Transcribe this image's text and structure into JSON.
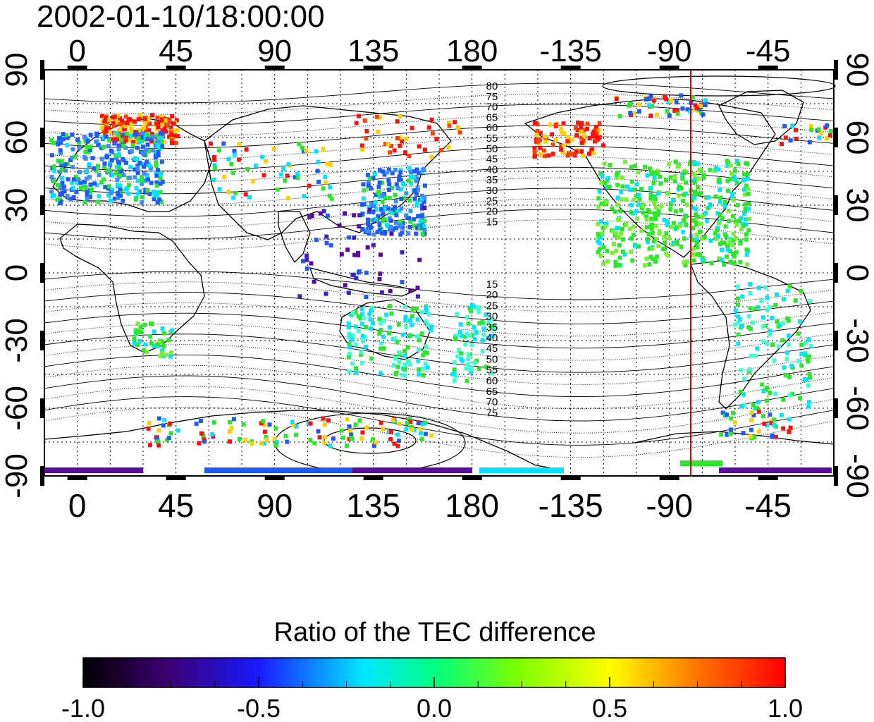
{
  "title": "2002-01-10/18:00:00",
  "axes": {
    "lon_ticks": [
      "0",
      "45",
      "90",
      "135",
      "180",
      "-135",
      "-90",
      "-45"
    ],
    "lat_ticks": [
      "90",
      "60",
      "30",
      "0",
      "-30",
      "-60",
      "-90"
    ]
  },
  "contour_labels_north": [
    "80",
    "75",
    "70",
    "65",
    "60",
    "55",
    "50",
    "45",
    "40",
    "35",
    "30",
    "25",
    "20",
    "15"
  ],
  "contour_labels_south": [
    "15",
    "20",
    "25",
    "30",
    "35",
    "40",
    "45",
    "50",
    "55",
    "60",
    "65",
    "70",
    "75"
  ],
  "meridian_marker": {
    "longitude": -90,
    "color": "#e00000"
  },
  "colorbar": {
    "title": "Ratio of the TEC difference",
    "tick_labels": [
      "-1.0",
      "-0.5",
      "0.0",
      "0.5",
      "1.0"
    ],
    "min": -1.0,
    "max": 1.0
  },
  "colors": {
    "very_negative": "#5a0aa0",
    "negative": "#1e5aff",
    "neutral": "#00e4ff",
    "zero": "#28e828",
    "positive": "#ffd000",
    "very_positive": "#ff1010"
  }
}
